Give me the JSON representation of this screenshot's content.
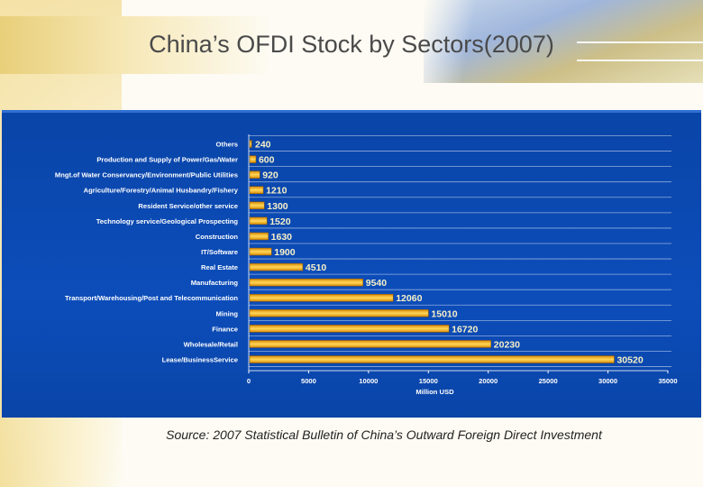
{
  "slide": {
    "title": "China’s OFDI Stock by Sectors(2007)",
    "source": "Source: 2007 Statistical Bulletin of China’s Outward Foreign Direct Investment"
  },
  "colors": {
    "panel": "#0c4dba",
    "bar_dark": "#d98a05",
    "bar_light": "#ffd75a",
    "label": "#ffffff",
    "value": "#f7f0c8",
    "grid": "#ffffff"
  },
  "chart_data": {
    "type": "bar",
    "orientation": "horizontal",
    "title": "China’s OFDI Stock by Sectors(2007)",
    "xlabel": "Million USD",
    "ylabel": "",
    "xlim": [
      0,
      35000
    ],
    "xticks": [
      0,
      5000,
      10000,
      15000,
      20000,
      25000,
      30000,
      35000
    ],
    "grid": true,
    "categories": [
      "Others",
      "Production and Supply of Power/Gas/Water",
      "Mngt.of Water Conservancy/Environment/Public Utilities",
      "Agriculture/Forestry/Animal Husbandry/Fishery",
      "Resident Service/other service",
      "Technology service/Geological Prospecting",
      "Construction",
      "IT/Software",
      "Real Estate",
      "Manufacturing",
      "Transport/Warehousing/Post and Telecommunication",
      "Mining",
      "Finance",
      "Wholesale/Retail",
      "Lease/BusinessService"
    ],
    "values": [
      240,
      600,
      920,
      1210,
      1300,
      1520,
      1630,
      1900,
      4510,
      9540,
      12060,
      15010,
      16720,
      20230,
      30520
    ],
    "value_labels": [
      "240",
      "600",
      "920",
      "1210",
      "1300",
      "1520",
      "1630",
      "1900",
      "4510",
      "9540",
      "12060",
      "15010",
      "16720",
      "20230",
      "30520"
    ]
  }
}
